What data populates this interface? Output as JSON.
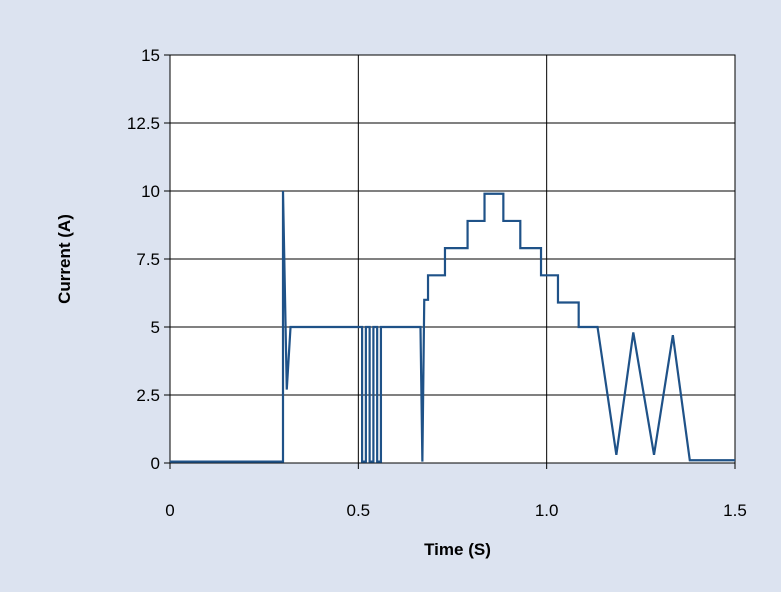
{
  "chart_data": {
    "type": "line",
    "title": "",
    "xlabel": "Time (S)",
    "ylabel": "Current (A)",
    "xlim": [
      0,
      1.5
    ],
    "ylim": [
      0,
      15
    ],
    "grid": true,
    "colors": {
      "background": "#dce3f0",
      "plot_area": "#ffffff",
      "line": "#1f5288",
      "grid": "#000000"
    },
    "x_ticks": [
      {
        "value": 0,
        "label": "0"
      },
      {
        "value": 0.5,
        "label": "0.5"
      },
      {
        "value": 1.0,
        "label": "1.0"
      },
      {
        "value": 1.5,
        "label": "1.5"
      }
    ],
    "y_ticks": [
      {
        "value": 0,
        "label": "0"
      },
      {
        "value": 2.5,
        "label": "2.5"
      },
      {
        "value": 5,
        "label": "5"
      },
      {
        "value": 7.5,
        "label": "7.5"
      },
      {
        "value": 10,
        "label": "10"
      },
      {
        "value": 12.5,
        "label": "12.5"
      },
      {
        "value": 15,
        "label": "15"
      }
    ],
    "series": [
      {
        "name": "",
        "points": [
          [
            0.0,
            0.05
          ],
          [
            0.3,
            0.05
          ],
          [
            0.3,
            10.0
          ],
          [
            0.31,
            2.7
          ],
          [
            0.32,
            5.0
          ],
          [
            0.51,
            5.0
          ],
          [
            0.51,
            0.05
          ],
          [
            0.52,
            0.05
          ],
          [
            0.52,
            5.0
          ],
          [
            0.53,
            5.0
          ],
          [
            0.53,
            0.05
          ],
          [
            0.54,
            0.05
          ],
          [
            0.54,
            5.0
          ],
          [
            0.55,
            5.0
          ],
          [
            0.55,
            0.05
          ],
          [
            0.56,
            0.05
          ],
          [
            0.56,
            5.0
          ],
          [
            0.665,
            5.0
          ],
          [
            0.67,
            0.05
          ],
          [
            0.675,
            6.0
          ],
          [
            0.685,
            6.0
          ],
          [
            0.685,
            6.9
          ],
          [
            0.73,
            6.9
          ],
          [
            0.73,
            7.9
          ],
          [
            0.79,
            7.9
          ],
          [
            0.79,
            8.9
          ],
          [
            0.835,
            8.9
          ],
          [
            0.835,
            9.9
          ],
          [
            0.885,
            9.9
          ],
          [
            0.885,
            8.9
          ],
          [
            0.93,
            8.9
          ],
          [
            0.93,
            7.9
          ],
          [
            0.985,
            7.9
          ],
          [
            0.985,
            6.9
          ],
          [
            1.03,
            6.9
          ],
          [
            1.03,
            5.9
          ],
          [
            1.085,
            5.9
          ],
          [
            1.085,
            5.0
          ],
          [
            1.135,
            5.0
          ],
          [
            1.185,
            0.3
          ],
          [
            1.23,
            4.8
          ],
          [
            1.285,
            0.3
          ],
          [
            1.335,
            4.7
          ],
          [
            1.38,
            0.1
          ],
          [
            1.5,
            0.1
          ]
        ]
      }
    ]
  }
}
